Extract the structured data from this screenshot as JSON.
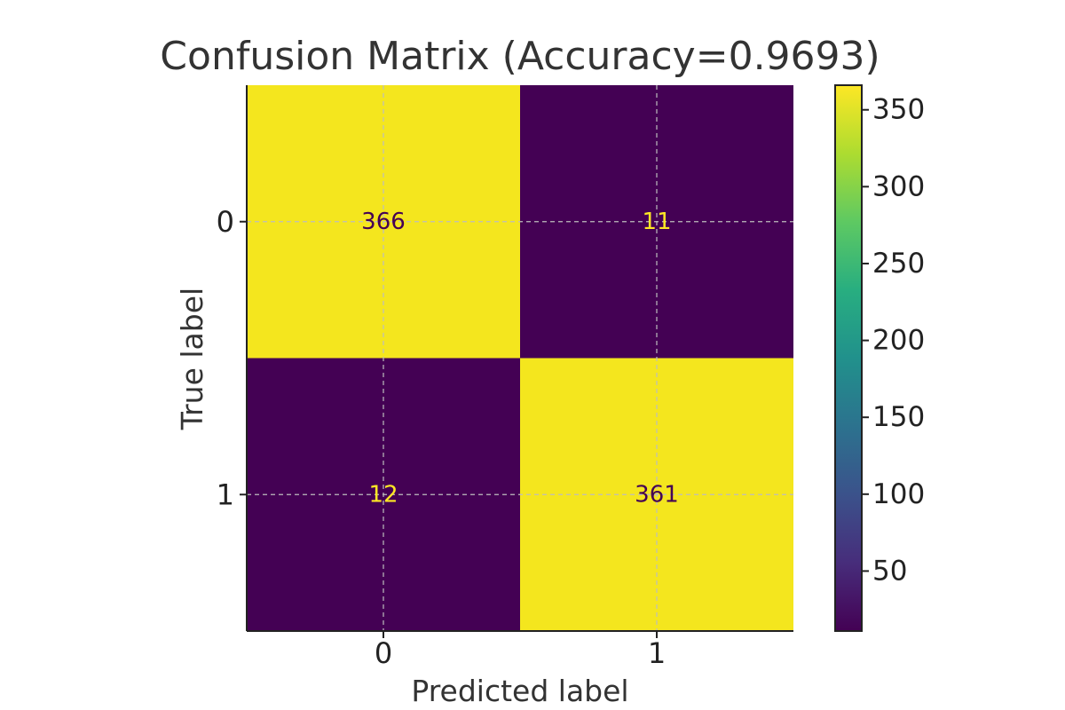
{
  "chart_data": {
    "type": "heatmap",
    "title": "Confusion Matrix (Accuracy=0.9693)",
    "xlabel": "Predicted label",
    "ylabel": "True label",
    "x_categories": [
      "0",
      "1"
    ],
    "y_categories": [
      "0",
      "1"
    ],
    "matrix": [
      [
        366,
        11
      ],
      [
        12,
        361
      ]
    ],
    "colorbar": {
      "range": [
        11,
        366
      ],
      "ticks": [
        50,
        100,
        150,
        200,
        250,
        300,
        350
      ],
      "colormap": "viridis"
    },
    "grid": true,
    "colors": {
      "high": "#f4e61e",
      "low": "#440154",
      "text_on_high": "#440154",
      "text_on_low": "#fde725"
    }
  }
}
